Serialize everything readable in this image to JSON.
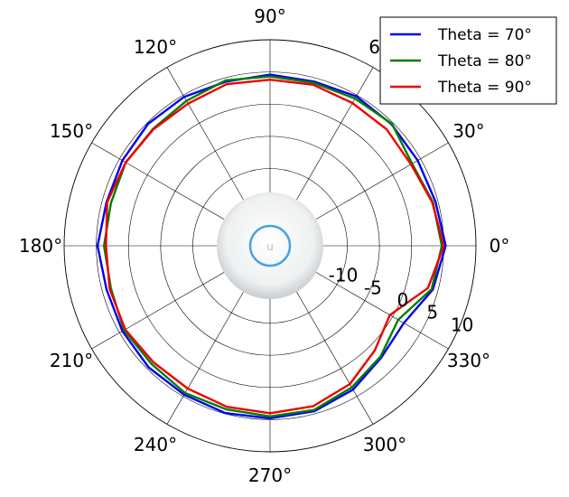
{
  "chart_data": {
    "type": "line",
    "projection": "polar",
    "angle_unit": "degrees",
    "angle_ticks": [
      0,
      30,
      60,
      90,
      120,
      150,
      180,
      210,
      240,
      270,
      300,
      330
    ],
    "angle_tick_labels": [
      "0°",
      "30°",
      "60°",
      "90°",
      "120°",
      "150°",
      "180°",
      "210°",
      "240°",
      "270°",
      "300°",
      "330°"
    ],
    "r_ticks": [
      -10,
      -5,
      0,
      5,
      10
    ],
    "r_tick_labels": [
      "-10",
      "-5",
      "0",
      "5",
      "10"
    ],
    "r_min": -22,
    "r_max": 10,
    "r_label_angle": -22.5,
    "grid": true,
    "legend": {
      "position": "top-right"
    },
    "inner_graphic": "access-point-device",
    "angles": [
      0,
      15,
      30,
      45,
      60,
      75,
      90,
      105,
      120,
      135,
      150,
      165,
      180,
      195,
      210,
      225,
      240,
      255,
      270,
      285,
      300,
      315,
      330,
      345
    ],
    "series": [
      {
        "name": "Theta = 70°",
        "color": "#0000ee",
        "values": [
          5.3,
          4.6,
          4.5,
          4.7,
          4.8,
          4.4,
          4.6,
          4.4,
          4.7,
          4.8,
          4.5,
          4.3,
          4.8,
          4.3,
          4.5,
          4.7,
          4.7,
          4.9,
          4.8,
          4.6,
          3.8,
          2.5,
          2.0,
          4.2
        ]
      },
      {
        "name": "Theta = 80°",
        "color": "#007f00",
        "values": [
          4.7,
          4.2,
          3.5,
          4.8,
          4.4,
          4.2,
          4.3,
          4.6,
          4.0,
          3.7,
          3.9,
          3.6,
          3.8,
          3.6,
          4.2,
          4.0,
          4.4,
          4.3,
          4.5,
          4.4,
          3.4,
          2.3,
          1.0,
          4.0
        ]
      },
      {
        "name": "Theta = 90°",
        "color": "#ee0000",
        "values": [
          5.0,
          4.1,
          3.3,
          3.6,
          3.6,
          3.9,
          3.8,
          4.0,
          3.5,
          3.6,
          3.9,
          4.2,
          3.5,
          3.8,
          4.0,
          3.6,
          3.6,
          3.9,
          4.0,
          3.8,
          2.8,
          1.0,
          -0.5,
          3.4
        ]
      }
    ]
  }
}
